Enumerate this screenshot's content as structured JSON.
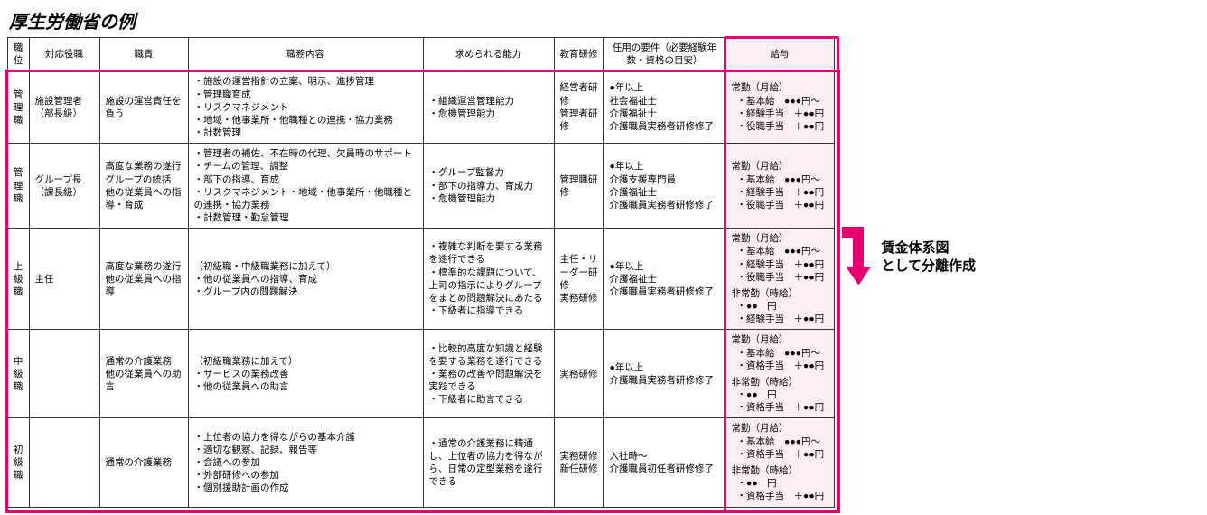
{
  "title": "厚生労働省の例",
  "callout_line1": "賃金体系図",
  "callout_line2": "として分離作成",
  "accent_color": "#e6006f",
  "salary_bg": "#fdeef4",
  "headers": {
    "position": "職位",
    "title": "対応役職",
    "responsibility": "職責",
    "duties": "職務内容",
    "abilities": "求められる能力",
    "training": "教育研修",
    "requirements": "任用の要件（必要経験年数・資格の目安）",
    "salary": "給与"
  },
  "rows": [
    {
      "position": "管理職",
      "title": "施設管理者（部長級）",
      "responsibility": "施設の運営責任を負う",
      "duties": [
        "施設の運営指針の立案、明示、進捗管理",
        "管理職育成",
        "リスクマネジメント",
        "地域・他事業所・他職種との連携・協力業務",
        "計数管理"
      ],
      "abilities": [
        "組織運営管理能力",
        "危機管理能力"
      ],
      "training": "経営者研修\n管理者研修",
      "requirements": "●年以上\n社会福祉士\n介護福祉士\n介護職員実務者研修修了",
      "salary": [
        {
          "head": "常勤（月給）",
          "lines": [
            "基本給　●●●円～",
            "経験手当　＋●●円",
            "役職手当　＋●●円"
          ]
        }
      ]
    },
    {
      "position": "管理職",
      "title": "グループ長（課長級）",
      "responsibility": "高度な業務の遂行\nグループの統括\n他の従業員への指導・育成",
      "duties": [
        "管理者の補佐、不在時の代理、欠員時のサポート",
        "チームの管理、調整",
        "部下の指導、育成",
        "リスクマネジメント・地域・他事業所・他職種との連携・協力業務",
        "計数管理・勤怠管理"
      ],
      "abilities": [
        "グループ監督力",
        "部下の指導力、育成力",
        "危機管理能力"
      ],
      "training": "管理職研修",
      "requirements": "●年以上\n介護支援専門員\n介護福祉士\n介護職員実務者研修修了",
      "salary": [
        {
          "head": "常勤（月給）",
          "lines": [
            "基本給　●●●円～",
            "経験手当　＋●●円",
            "役職手当　＋●●円"
          ]
        }
      ]
    },
    {
      "position": "上級職",
      "title": "主任",
      "responsibility": "高度な業務の遂行\n他の従業員への指導",
      "duties_prefix": "（初級職・中級職業務に加えて）",
      "duties": [
        "他の従業員への指導、育成",
        "グループ内の問題解決"
      ],
      "abilities": [
        "複雑な判断を要する業務を遂行できる",
        "標準的な課題について、上司の指示によりグループをまとめ問題解決にあたる",
        "下級者に指導できる"
      ],
      "training": "主任・リーダー研修\n実務研修",
      "requirements": "●年以上\n介護福祉士\n介護職員実務者研修修了",
      "salary": [
        {
          "head": "常勤（月給）",
          "lines": [
            "基本給　●●●円～",
            "経験手当　＋●●円",
            "役職手当　＋●●円"
          ]
        },
        {
          "head": "非常勤（時給）",
          "lines": [
            "●●　円",
            "経験手当　＋●●円"
          ]
        }
      ]
    },
    {
      "position": "中級職",
      "title": "",
      "responsibility": "通常の介護業務\n他の従業員への助言",
      "duties_prefix": "（初級職業務に加えて）",
      "duties": [
        "サービスの業務改善",
        "他の従業員への助言"
      ],
      "abilities": [
        "比較的高度な知識と経験を要する業務を遂行できる",
        "業務の改善や問題解決を実践できる",
        "下級者に助言できる"
      ],
      "training": "実務研修",
      "requirements": "●年以上\n介護職員実務者研修修了",
      "salary": [
        {
          "head": "常勤（月給）",
          "lines": [
            "基本給　●●●円～",
            "資格手当　＋●●円"
          ]
        },
        {
          "head": "非常勤（時給）",
          "lines": [
            "●●　円",
            "資格手当　＋●●円"
          ]
        }
      ]
    },
    {
      "position": "初級職",
      "title": "",
      "responsibility": "通常の介護業務",
      "duties": [
        "上位者の協力を得ながらの基本介護",
        "適切な観察、記録、報告等",
        "会議への参加",
        "外部研修への参加",
        "個別援助計画の作成"
      ],
      "abilities_text": "・通常の介護業務に精通し、上位者の協力を得ながら、日常の定型業務を遂行できる",
      "training": "実務研修\n新任研修",
      "requirements": "入社時～\n介護職員初任者研修修了",
      "salary": [
        {
          "head": "常勤（月給）",
          "lines": [
            "基本給　●●●円～",
            "資格手当　＋●●円"
          ]
        },
        {
          "head": "非常勤（時給）",
          "lines": [
            "●●　円",
            "資格手当　＋●●円"
          ]
        }
      ]
    }
  ]
}
